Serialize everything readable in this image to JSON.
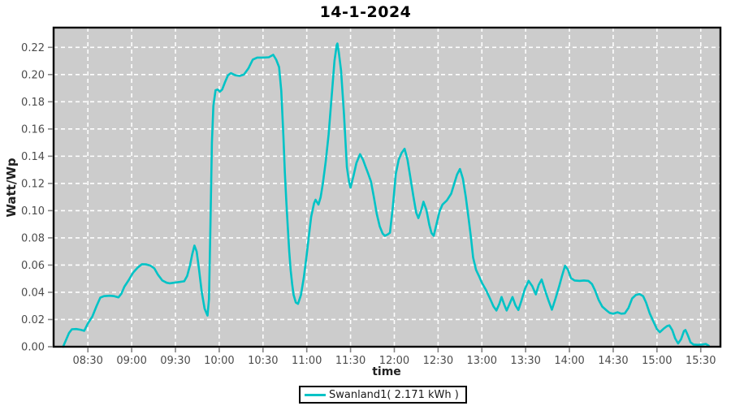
{
  "colors": {
    "page_background": "#ffffff",
    "plot_background": "#cccccc",
    "gridline": "#ffffff",
    "plot_border": "#000000",
    "tick_mark": "#848484",
    "tick_label": "#4c4c4c",
    "series_line": "#00c3c6",
    "title_text": "#000000"
  },
  "legend": {
    "label": "Swanland1( 2.171 kWh )",
    "position": "bottom-center",
    "border_color": "#000000",
    "swatch_color": "#00c3c6"
  },
  "chart_data": {
    "type": "line",
    "title": "14-1-2024",
    "xlabel": "time",
    "ylabel": "Watt/Wp",
    "grid": "white dashed, on",
    "legend_position": "bottom",
    "x_tick_labels": [
      "08:30",
      "09:00",
      "09:30",
      "10:00",
      "10:30",
      "11:00",
      "11:30",
      "12:00",
      "12:30",
      "13:00",
      "13:30",
      "14:00",
      "14:30",
      "15:00",
      "15:30"
    ],
    "x_tick_minutes_after_0800": [
      30,
      60,
      90,
      120,
      150,
      180,
      210,
      240,
      270,
      300,
      330,
      360,
      390,
      420,
      450
    ],
    "y_tick_labels": [
      "0.00",
      "0.02",
      "0.04",
      "0.06",
      "0.08",
      "0.10",
      "0.12",
      "0.14",
      "0.16",
      "0.18",
      "0.20",
      "0.22"
    ],
    "y_tick_values": [
      0.0,
      0.02,
      0.04,
      0.06,
      0.08,
      0.1,
      0.12,
      0.14,
      0.16,
      0.18,
      0.2,
      0.22
    ],
    "xlim_minutes_after_0800": [
      6.5,
      463.5
    ],
    "ylim": [
      0,
      0.2345
    ],
    "series": [
      {
        "name": "Swanland1( 2.171 kWh )",
        "color": "#00c3c6",
        "points_minutes_after_0800_vs_watt_per_wp": [
          [
            13,
            0.0
          ],
          [
            15,
            0.005
          ],
          [
            17,
            0.01
          ],
          [
            19,
            0.0128
          ],
          [
            22,
            0.013
          ],
          [
            25,
            0.0125
          ],
          [
            27.5,
            0.0117
          ],
          [
            30,
            0.0171
          ],
          [
            33,
            0.0221
          ],
          [
            36,
            0.0301
          ],
          [
            38.5,
            0.0361
          ],
          [
            41,
            0.0372
          ],
          [
            45,
            0.0375
          ],
          [
            48,
            0.0372
          ],
          [
            51,
            0.0363
          ],
          [
            53,
            0.039
          ],
          [
            55,
            0.0441
          ],
          [
            58,
            0.049
          ],
          [
            61,
            0.0545
          ],
          [
            64,
            0.058
          ],
          [
            67,
            0.0606
          ],
          [
            70,
            0.0605
          ],
          [
            73,
            0.0595
          ],
          [
            75.5,
            0.0576
          ],
          [
            78,
            0.053
          ],
          [
            81,
            0.0487
          ],
          [
            84,
            0.047
          ],
          [
            86,
            0.0466
          ],
          [
            90,
            0.0472
          ],
          [
            93,
            0.0476
          ],
          [
            96,
            0.0481
          ],
          [
            98,
            0.052
          ],
          [
            100,
            0.06
          ],
          [
            101.5,
            0.068
          ],
          [
            103,
            0.0743
          ],
          [
            104.5,
            0.07
          ],
          [
            106,
            0.058
          ],
          [
            108,
            0.0405
          ],
          [
            110,
            0.028
          ],
          [
            112,
            0.0229
          ],
          [
            113,
            0.035
          ],
          [
            114,
            0.09
          ],
          [
            115,
            0.15
          ],
          [
            116,
            0.177
          ],
          [
            117.5,
            0.1885
          ],
          [
            119,
            0.189
          ],
          [
            120.5,
            0.1875
          ],
          [
            122,
            0.189
          ],
          [
            124,
            0.1945
          ],
          [
            126,
            0.1995
          ],
          [
            128,
            0.201
          ],
          [
            131,
            0.1995
          ],
          [
            134,
            0.199
          ],
          [
            137,
            0.2
          ],
          [
            140,
            0.2045
          ],
          [
            143,
            0.211
          ],
          [
            146,
            0.2125
          ],
          [
            150,
            0.2125
          ],
          [
            154,
            0.2127
          ],
          [
            157,
            0.2145
          ],
          [
            159,
            0.211
          ],
          [
            161,
            0.2055
          ],
          [
            162.5,
            0.188
          ],
          [
            164,
            0.155
          ],
          [
            165,
            0.128
          ],
          [
            166,
            0.107
          ],
          [
            167,
            0.088
          ],
          [
            168,
            0.07
          ],
          [
            169,
            0.056
          ],
          [
            170,
            0.046
          ],
          [
            171,
            0.038
          ],
          [
            172.5,
            0.0325
          ],
          [
            174,
            0.0315
          ],
          [
            176,
            0.038
          ],
          [
            178,
            0.051
          ],
          [
            180,
            0.068
          ],
          [
            181.5,
            0.082
          ],
          [
            183,
            0.0955
          ],
          [
            185,
            0.1055
          ],
          [
            186,
            0.108
          ],
          [
            188,
            0.1045
          ],
          [
            189.5,
            0.11
          ],
          [
            191,
            0.12
          ],
          [
            193,
            0.136
          ],
          [
            195,
            0.156
          ],
          [
            197,
            0.183
          ],
          [
            199,
            0.21
          ],
          [
            200.5,
            0.2215
          ],
          [
            201,
            0.2228
          ],
          [
            202,
            0.216
          ],
          [
            203.5,
            0.203
          ],
          [
            205.5,
            0.171
          ],
          [
            207.5,
            0.132
          ],
          [
            209,
            0.121
          ],
          [
            210,
            0.1169
          ],
          [
            212,
            0.1255
          ],
          [
            214,
            0.135
          ],
          [
            216.5,
            0.1415
          ],
          [
            218.5,
            0.1375
          ],
          [
            220,
            0.133
          ],
          [
            222,
            0.1275
          ],
          [
            224,
            0.1215
          ],
          [
            226,
            0.11
          ],
          [
            228,
            0.0975
          ],
          [
            230,
            0.0885
          ],
          [
            232,
            0.0832
          ],
          [
            233.5,
            0.0815
          ],
          [
            235.5,
            0.0825
          ],
          [
            237,
            0.0838
          ],
          [
            239,
            0.103
          ],
          [
            241,
            0.127
          ],
          [
            243,
            0.1375
          ],
          [
            245,
            0.1425
          ],
          [
            247,
            0.1455
          ],
          [
            249,
            0.1375
          ],
          [
            251,
            0.1245
          ],
          [
            253,
            0.111
          ],
          [
            255,
            0.0985
          ],
          [
            256.5,
            0.0945
          ],
          [
            258.5,
            0.1005
          ],
          [
            260,
            0.1065
          ],
          [
            262,
            0.1005
          ],
          [
            264,
            0.0895
          ],
          [
            265.5,
            0.0835
          ],
          [
            267,
            0.0815
          ],
          [
            269,
            0.0905
          ],
          [
            271,
            0.0995
          ],
          [
            273,
            0.1045
          ],
          [
            276,
            0.1075
          ],
          [
            279,
            0.1125
          ],
          [
            281,
            0.1195
          ],
          [
            283,
            0.1265
          ],
          [
            285,
            0.1306
          ],
          [
            287,
            0.1235
          ],
          [
            289,
            0.11
          ],
          [
            291,
            0.0935
          ],
          [
            292.5,
            0.0805
          ],
          [
            294,
            0.0655
          ],
          [
            296,
            0.0565
          ],
          [
            298,
            0.052
          ],
          [
            300,
            0.047
          ],
          [
            303,
            0.0413
          ],
          [
            305.5,
            0.0355
          ],
          [
            308,
            0.0296
          ],
          [
            310,
            0.0266
          ],
          [
            312,
            0.0315
          ],
          [
            313.5,
            0.0365
          ],
          [
            315.5,
            0.0305
          ],
          [
            317,
            0.0266
          ],
          [
            319,
            0.0315
          ],
          [
            321,
            0.0365
          ],
          [
            323,
            0.0305
          ],
          [
            325,
            0.027
          ],
          [
            327,
            0.0335
          ],
          [
            329.5,
            0.0425
          ],
          [
            332,
            0.0484
          ],
          [
            334.5,
            0.0445
          ],
          [
            337,
            0.0385
          ],
          [
            339,
            0.0455
          ],
          [
            341,
            0.0494
          ],
          [
            343,
            0.0425
          ],
          [
            345.5,
            0.0345
          ],
          [
            348,
            0.0272
          ],
          [
            350.5,
            0.0355
          ],
          [
            353,
            0.0445
          ],
          [
            355,
            0.0524
          ],
          [
            357,
            0.0595
          ],
          [
            359,
            0.0565
          ],
          [
            361,
            0.0505
          ],
          [
            363.5,
            0.0487
          ],
          [
            367,
            0.0484
          ],
          [
            370,
            0.0487
          ],
          [
            373,
            0.0484
          ],
          [
            375.5,
            0.046
          ],
          [
            377.5,
            0.0415
          ],
          [
            380,
            0.0345
          ],
          [
            382.5,
            0.0295
          ],
          [
            385.5,
            0.0266
          ],
          [
            387.5,
            0.0249
          ],
          [
            390,
            0.0242
          ],
          [
            393,
            0.0253
          ],
          [
            395.5,
            0.0243
          ],
          [
            398,
            0.0245
          ],
          [
            400.5,
            0.0285
          ],
          [
            403,
            0.0355
          ],
          [
            405.5,
            0.038
          ],
          [
            408,
            0.0387
          ],
          [
            410.5,
            0.0372
          ],
          [
            412.5,
            0.0325
          ],
          [
            415,
            0.0246
          ],
          [
            417.5,
            0.0186
          ],
          [
            420,
            0.0128
          ],
          [
            422,
            0.0107
          ],
          [
            424.5,
            0.0132
          ],
          [
            427,
            0.0152
          ],
          [
            428.5,
            0.0157
          ],
          [
            430.5,
            0.0122
          ],
          [
            432.5,
            0.006
          ],
          [
            434.5,
            0.0024
          ],
          [
            436.5,
            0.0055
          ],
          [
            438.5,
            0.0115
          ],
          [
            439.5,
            0.0123
          ],
          [
            441,
            0.0088
          ],
          [
            443,
            0.0032
          ],
          [
            445,
            0.0016
          ],
          [
            448,
            0.0014
          ],
          [
            451,
            0.0016
          ],
          [
            453.5,
            0.002
          ],
          [
            455.5,
            0.0008
          ]
        ]
      }
    ]
  }
}
